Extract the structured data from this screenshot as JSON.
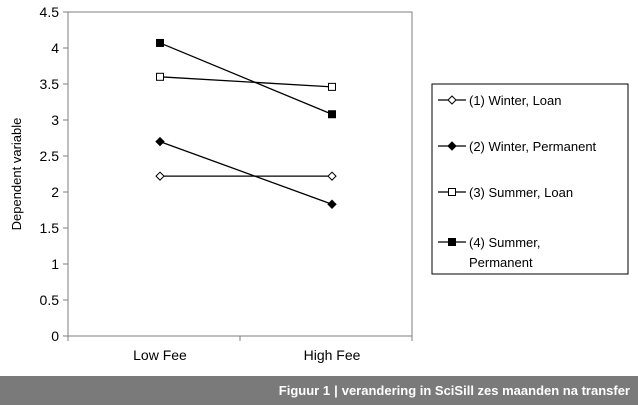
{
  "chart_data": {
    "type": "line",
    "categories": [
      "Low Fee",
      "High Fee"
    ],
    "ylabel": "Dependent variable",
    "xlabel": "",
    "ylim": [
      0,
      4.5
    ],
    "yticks": [
      "0",
      "0.5",
      "1",
      "1.5",
      "2",
      "2.5",
      "3",
      "3.5",
      "4",
      "4.5"
    ],
    "grid": false,
    "legend_position": "right",
    "series": [
      {
        "name": "(1) Winter, Loan",
        "values": [
          2.22,
          2.22
        ],
        "marker": "diamond-open",
        "color": "#000000"
      },
      {
        "name": "(2) Winter, Permanent",
        "values": [
          2.7,
          1.83
        ],
        "marker": "diamond-filled",
        "color": "#000000"
      },
      {
        "name": "(3) Summer, Loan",
        "values": [
          3.6,
          3.46
        ],
        "marker": "square-open",
        "color": "#000000"
      },
      {
        "name": "(4) Summer, Permanent",
        "values": [
          4.07,
          3.08
        ],
        "marker": "square-filled",
        "color": "#000000"
      }
    ]
  },
  "legend": {
    "entries": [
      {
        "line1": "(1) Winter, Loan",
        "line2": ""
      },
      {
        "line1": "(2) Winter, Permanent",
        "line2": ""
      },
      {
        "line1": "(3) Summer, Loan",
        "line2": ""
      },
      {
        "line1": "(4) Summer,",
        "line2": "Permanent"
      }
    ]
  },
  "caption": {
    "label": "Figuur 1",
    "separator": "|",
    "text": "verandering in SciSill zes maanden na transfer"
  }
}
